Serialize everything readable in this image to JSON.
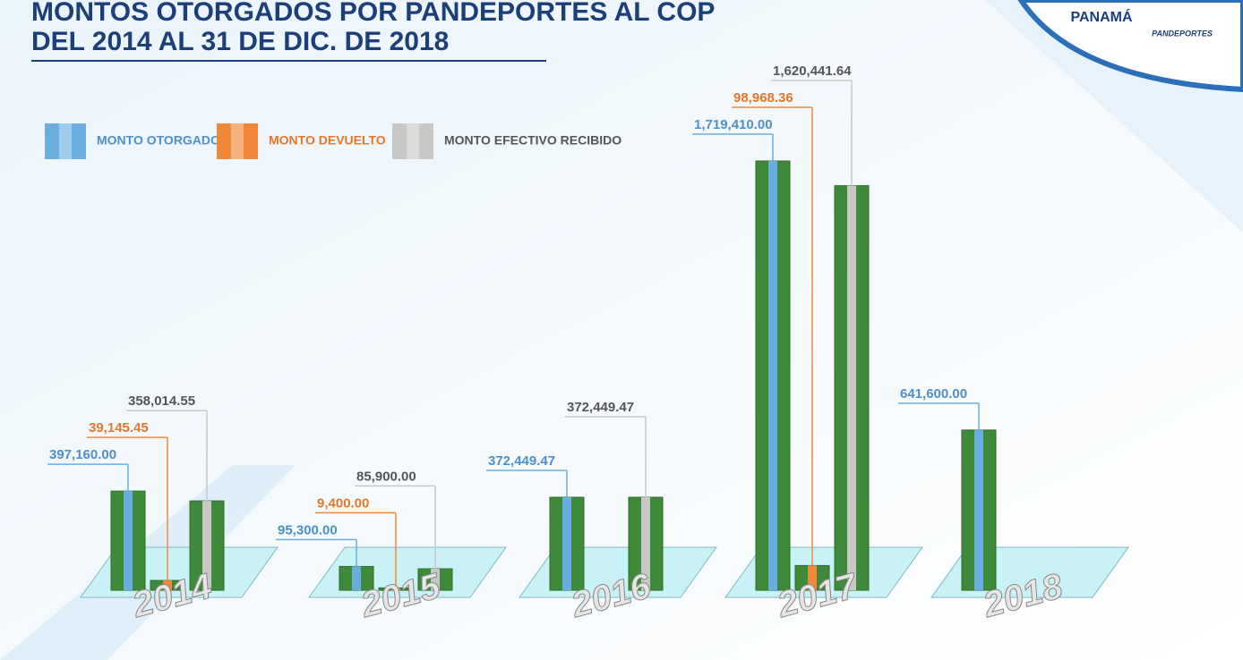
{
  "title": [
    "MONTOS OTORGADOS POR PANDEPORTES AL COP",
    "DEL 2014  AL 31 DE DIC. DE 2018"
  ],
  "logos": [
    "PANAMÁ",
    "PANDEPORTES"
  ],
  "chart_data": {
    "type": "bar",
    "categories": [
      "2014",
      "2015",
      "2016",
      "2017",
      "2018"
    ],
    "series": [
      {
        "name": "MONTO OTORGADO",
        "color": "#6aaee0",
        "label_color": "#4f8fc9",
        "values": [
          397160.0,
          95300.0,
          372449.47,
          1719410.0,
          641600.0
        ],
        "value_labels": [
          "397,160.00",
          "95,300.00",
          "372,449.47",
          "1,719,410.00",
          "641,600.00"
        ]
      },
      {
        "name": "MONTO DEVUELTO",
        "color": "#f0883a",
        "label_color": "#e8762a",
        "values": [
          39145.45,
          9400.0,
          null,
          98968.36,
          null
        ],
        "value_labels": [
          "39,145.45",
          "9,400.00",
          null,
          "98,968.36",
          null
        ]
      },
      {
        "name": "MONTO EFECTIVO RECIBIDO",
        "color": "#c8c8c8",
        "label_color": "#555555",
        "values": [
          358014.55,
          85900.0,
          372449.47,
          1620441.64,
          null
        ],
        "value_labels": [
          "358,014.55",
          "85,900.00",
          "372,449.47",
          "1,620,441.64",
          null
        ]
      }
    ]
  }
}
